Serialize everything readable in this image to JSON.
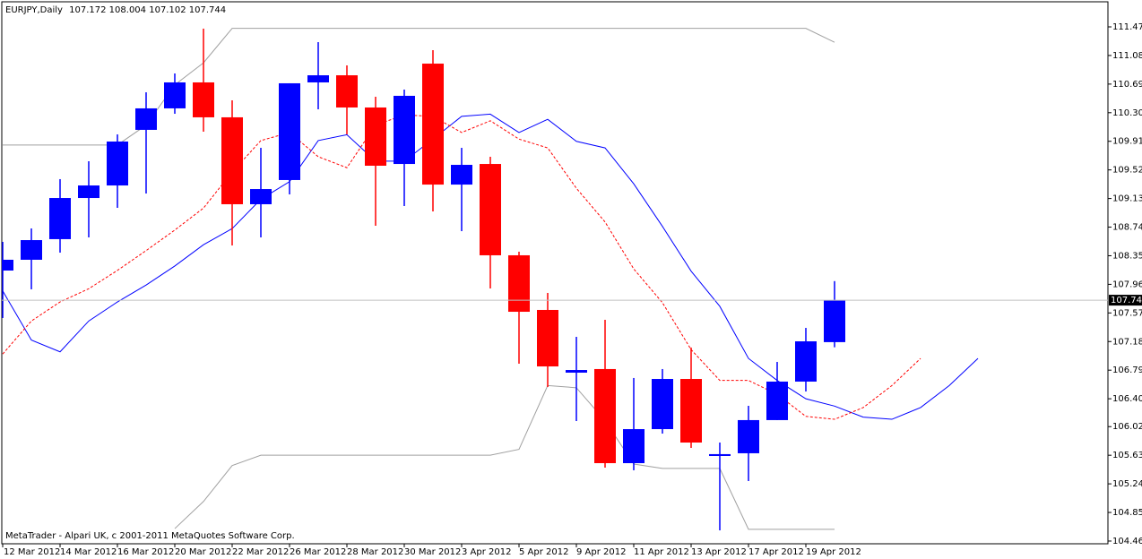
{
  "chart_data": {
    "type": "candlestick",
    "symbol": "EURJPY,Daily",
    "footer": "MetaTrader - Alpari UK, c 2001-2011 MetaQuotes Software Corp.",
    "categories": [
      "12 Mar 2012",
      null,
      "14 Mar 2012",
      null,
      "16 Mar 2012",
      null,
      "20 Mar 2012",
      null,
      "22 Mar 2012",
      null,
      "26 Mar 2012",
      null,
      "28 Mar 2012",
      null,
      "30 Mar 2012",
      null,
      "3 Apr 2012",
      null,
      "5 Apr 2012",
      null,
      "9 Apr 2012",
      null,
      "11 Apr 2012",
      null,
      "13 Apr 2012",
      null,
      "17 Apr 2012",
      null,
      "19 Apr 2012",
      null
    ],
    "up_color": "#0000ff",
    "down_color": "#ff0000",
    "open": [
      108.148,
      108.295,
      108.576,
      109.137,
      109.308,
      110.066,
      110.359,
      110.713,
      110.237,
      109.052,
      109.382,
      110.713,
      110.81,
      110.371,
      109.601,
      110.969,
      109.32,
      109.601,
      108.356,
      107.611,
      106.756,
      106.805,
      105.522,
      105.986,
      106.67,
      105.62,
      105.657,
      106.109,
      106.634,
      107.172
    ],
    "high": [
      108.539,
      108.722,
      109.394,
      109.638,
      110.004,
      110.578,
      110.835,
      111.446,
      110.469,
      109.821,
      110.701,
      111.262,
      110.945,
      110.517,
      110.615,
      111.152,
      109.821,
      109.699,
      108.405,
      107.843,
      107.244,
      107.476,
      106.683,
      106.805,
      107.098,
      105.803,
      106.304,
      106.902,
      107.366,
      108.004
    ],
    "low": [
      107.501,
      107.892,
      108.392,
      108.6,
      109.003,
      109.198,
      110.285,
      110.041,
      108.49,
      108.6,
      109.186,
      110.346,
      110.004,
      108.759,
      109.027,
      108.954,
      108.685,
      107.904,
      106.878,
      106.56,
      106.096,
      105.461,
      105.425,
      105.925,
      105.73,
      104.606,
      105.278,
      106.109,
      106.499,
      107.102
    ],
    "close": [
      108.295,
      108.563,
      109.137,
      109.308,
      109.907,
      110.359,
      110.713,
      110.237,
      109.052,
      109.259,
      110.701,
      110.81,
      110.371,
      109.577,
      110.53,
      109.32,
      109.589,
      108.356,
      107.586,
      106.841,
      106.792,
      105.522,
      105.986,
      106.67,
      105.803,
      105.645,
      106.109,
      106.634,
      107.183,
      107.744
    ],
    "indicators": [
      {
        "color": "#0000ff",
        "dash": false,
        "values": [
          107.87,
          107.2,
          107.04,
          107.46,
          107.72,
          107.95,
          108.21,
          108.5,
          108.72,
          109.12,
          109.36,
          109.92,
          110.0,
          109.64,
          109.64,
          109.94,
          110.25,
          110.28,
          110.03,
          110.21,
          109.91,
          109.82,
          109.33,
          108.75,
          108.14,
          107.66,
          106.95,
          106.65,
          106.4,
          106.3,
          106.15,
          106.12,
          106.28,
          106.58,
          106.95
        ]
      },
      {
        "color": "#ff0000",
        "dash": true,
        "values": [
          107.01,
          107.46,
          107.72,
          107.9,
          108.15,
          108.42,
          108.7,
          109.0,
          109.49,
          109.92,
          110.03,
          109.7,
          109.55,
          110.13,
          110.27,
          110.25,
          110.03,
          110.19,
          109.94,
          109.82,
          109.27,
          108.81,
          108.17,
          107.71,
          107.07,
          106.65,
          106.65,
          106.46,
          106.16,
          106.12,
          106.28,
          106.58,
          106.95
        ]
      },
      {
        "color": "#a0a0a0",
        "dash": false,
        "values": [
          109.86,
          109.86,
          109.86,
          109.86,
          109.86,
          110.13,
          110.68,
          110.98,
          111.45,
          111.45,
          111.45,
          111.45,
          111.45,
          111.45,
          111.45,
          111.45,
          111.45,
          111.45,
          111.45,
          111.45,
          111.45,
          111.45,
          111.45,
          111.45,
          111.45,
          111.45,
          111.45,
          111.45,
          111.45,
          111.26
        ]
      },
      {
        "color": "#a0a0a0",
        "dash": false,
        "values": [
          null,
          null,
          null,
          null,
          null,
          null,
          104.63,
          105.0,
          105.49,
          105.63,
          105.63,
          105.63,
          105.63,
          105.63,
          105.63,
          105.63,
          105.63,
          105.63,
          105.71,
          106.58,
          106.55,
          106.1,
          105.51,
          105.45,
          105.45,
          105.45,
          104.62,
          104.62,
          104.62,
          104.62
        ]
      }
    ],
    "ylim": [
      104.423,
      111.812
    ],
    "yticks": [
      {
        "value": 111.47,
        "label": "111.470"
      },
      {
        "value": 111.08,
        "label": "111.080"
      },
      {
        "value": 110.69,
        "label": "110.690"
      },
      {
        "value": 110.3,
        "label": "110.300"
      },
      {
        "value": 109.91,
        "label": "109.910"
      },
      {
        "value": 109.52,
        "label": "109.520"
      },
      {
        "value": 109.13,
        "label": "109.130"
      },
      {
        "value": 108.74,
        "label": "108.740"
      },
      {
        "value": 108.35,
        "label": "108.350"
      },
      {
        "value": 107.96,
        "label": "107.960"
      },
      {
        "value": 107.57,
        "label": "107.570"
      },
      {
        "value": 107.18,
        "label": "107.180"
      },
      {
        "value": 106.79,
        "label": "106.790"
      },
      {
        "value": 106.4,
        "label": "106.400"
      },
      {
        "value": 106.02,
        "label": "106.020"
      },
      {
        "value": 105.63,
        "label": "105.630"
      },
      {
        "value": 105.24,
        "label": "105.240"
      },
      {
        "value": 104.85,
        "label": "104.850"
      },
      {
        "value": 104.46,
        "label": "104.460"
      }
    ],
    "grid": false
  }
}
